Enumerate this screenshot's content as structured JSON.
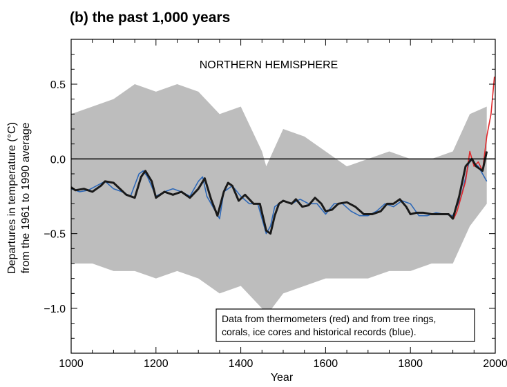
{
  "title": "(b) the past 1,000 years",
  "chart_data": {
    "type": "line",
    "region_label": "NORTHERN HEMISPHERE",
    "xlabel": "Year",
    "ylabel_lines": [
      "Departures in temperature (°C)",
      "from the 1961 to 1990 average"
    ],
    "xlim": [
      1000,
      2000
    ],
    "ylim": [
      -1.3,
      0.8
    ],
    "x_ticks": [
      1000,
      1200,
      1400,
      1600,
      1800,
      2000
    ],
    "x_tick_labels": [
      "1000",
      "1200",
      "1400",
      "1600",
      "1800",
      "2000"
    ],
    "y_ticks": [
      0.5,
      0.0,
      -0.5,
      -1.0
    ],
    "y_tick_labels": [
      "0.5",
      "0.0",
      "−0.5",
      "−1.0"
    ],
    "zero_line": 0.0,
    "grid": false,
    "note_lines": [
      "Data from thermometers (red) and from tree rings,",
      "corals, ice cores and historical records (blue)."
    ],
    "colors": {
      "uncertainty": "#bdbdbd",
      "proxy": "#2d68b8",
      "instrumental": "#e0282b",
      "smoothed": "#1a1a1a"
    },
    "series": [
      {
        "key": "uncertainty",
        "kind": "band",
        "x": [
          1000,
          1050,
          1100,
          1150,
          1200,
          1250,
          1300,
          1350,
          1400,
          1450,
          1460,
          1500,
          1550,
          1600,
          1650,
          1700,
          1750,
          1800,
          1850,
          1900,
          1940,
          1980
        ],
        "upper": [
          0.3,
          0.35,
          0.4,
          0.5,
          0.45,
          0.5,
          0.45,
          0.3,
          0.35,
          0.05,
          -0.05,
          0.2,
          0.15,
          0.05,
          -0.05,
          0.0,
          0.05,
          0.0,
          0.0,
          0.05,
          0.3,
          0.35
        ],
        "lower": [
          -0.7,
          -0.7,
          -0.75,
          -0.75,
          -0.8,
          -0.75,
          -0.8,
          -0.9,
          -0.85,
          -1.0,
          -1.05,
          -0.9,
          -0.85,
          -0.8,
          -0.8,
          -0.8,
          -0.75,
          -0.75,
          -0.7,
          -0.7,
          -0.45,
          -0.3
        ]
      },
      {
        "key": "proxy",
        "kind": "line",
        "x": [
          1000,
          1020,
          1040,
          1060,
          1080,
          1100,
          1120,
          1140,
          1160,
          1170,
          1180,
          1200,
          1220,
          1240,
          1260,
          1280,
          1300,
          1310,
          1320,
          1340,
          1350,
          1360,
          1380,
          1400,
          1420,
          1440,
          1460,
          1470,
          1480,
          1500,
          1520,
          1540,
          1560,
          1580,
          1600,
          1620,
          1640,
          1660,
          1680,
          1700,
          1720,
          1740,
          1760,
          1780,
          1800,
          1820,
          1840,
          1860,
          1880,
          1900,
          1920,
          1940,
          1960,
          1980
        ],
        "y": [
          -0.2,
          -0.22,
          -0.21,
          -0.18,
          -0.15,
          -0.2,
          -0.22,
          -0.25,
          -0.1,
          -0.08,
          -0.12,
          -0.25,
          -0.22,
          -0.2,
          -0.22,
          -0.25,
          -0.15,
          -0.12,
          -0.25,
          -0.35,
          -0.4,
          -0.22,
          -0.18,
          -0.25,
          -0.3,
          -0.3,
          -0.5,
          -0.45,
          -0.32,
          -0.28,
          -0.3,
          -0.27,
          -0.3,
          -0.3,
          -0.37,
          -0.3,
          -0.3,
          -0.35,
          -0.38,
          -0.38,
          -0.35,
          -0.3,
          -0.32,
          -0.28,
          -0.3,
          -0.38,
          -0.38,
          -0.36,
          -0.37,
          -0.38,
          -0.25,
          0.0,
          -0.05,
          -0.15
        ]
      },
      {
        "key": "instrumental",
        "kind": "line",
        "x": [
          1902,
          1910,
          1920,
          1930,
          1940,
          1950,
          1960,
          1970,
          1980,
          1990,
          1998
        ],
        "y": [
          -0.4,
          -0.35,
          -0.25,
          -0.15,
          0.05,
          -0.05,
          -0.02,
          -0.08,
          0.15,
          0.3,
          0.55
        ]
      },
      {
        "key": "smoothed",
        "kind": "line",
        "x": [
          1000,
          1010,
          1030,
          1050,
          1070,
          1080,
          1100,
          1130,
          1150,
          1165,
          1175,
          1190,
          1200,
          1220,
          1240,
          1260,
          1280,
          1300,
          1315,
          1330,
          1345,
          1360,
          1370,
          1380,
          1395,
          1410,
          1430,
          1445,
          1460,
          1470,
          1480,
          1490,
          1500,
          1520,
          1530,
          1545,
          1560,
          1575,
          1590,
          1600,
          1615,
          1630,
          1650,
          1670,
          1690,
          1710,
          1730,
          1745,
          1760,
          1775,
          1790,
          1800,
          1815,
          1830,
          1850,
          1870,
          1890,
          1900,
          1915,
          1930,
          1945,
          1955,
          1970,
          1980
        ],
        "y": [
          -0.19,
          -0.21,
          -0.2,
          -0.22,
          -0.18,
          -0.15,
          -0.16,
          -0.24,
          -0.26,
          -0.12,
          -0.08,
          -0.15,
          -0.26,
          -0.22,
          -0.24,
          -0.22,
          -0.26,
          -0.2,
          -0.13,
          -0.27,
          -0.38,
          -0.22,
          -0.16,
          -0.18,
          -0.28,
          -0.24,
          -0.3,
          -0.3,
          -0.48,
          -0.5,
          -0.38,
          -0.3,
          -0.28,
          -0.3,
          -0.27,
          -0.32,
          -0.31,
          -0.26,
          -0.3,
          -0.35,
          -0.34,
          -0.3,
          -0.29,
          -0.32,
          -0.37,
          -0.37,
          -0.35,
          -0.3,
          -0.3,
          -0.27,
          -0.32,
          -0.37,
          -0.36,
          -0.36,
          -0.37,
          -0.37,
          -0.37,
          -0.4,
          -0.25,
          -0.05,
          0.0,
          -0.05,
          -0.08,
          0.05
        ]
      }
    ]
  }
}
